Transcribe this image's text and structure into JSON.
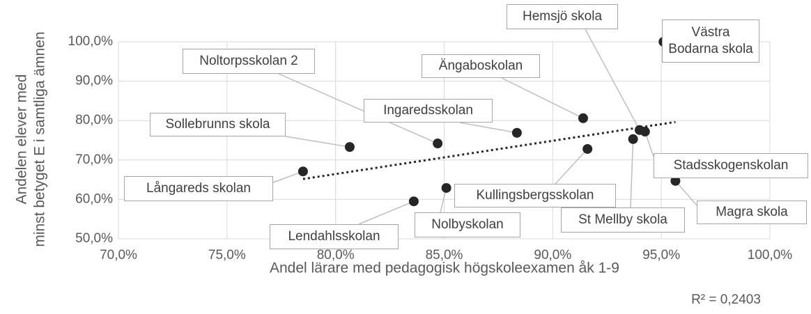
{
  "chart_data": {
    "type": "scatter",
    "xlabel": "Andel lärare med pedagogisk högskoleexamen åk 1-9",
    "ylabel": [
      "Andelen elever med",
      "minst betyget E i samtliga ämnen"
    ],
    "annotation": "R² = 0,2403",
    "color": "#262626",
    "trendline": true,
    "grid": true,
    "xlim": [
      70,
      100
    ],
    "ylim": [
      50,
      100
    ],
    "xticks": [
      {
        "value": 70,
        "label": "70,0%"
      },
      {
        "value": 75,
        "label": "75,0%"
      },
      {
        "value": 80,
        "label": "80,0%"
      },
      {
        "value": 85,
        "label": "85,0%"
      },
      {
        "value": 90,
        "label": "90,0%"
      },
      {
        "value": 95,
        "label": "95,0%"
      },
      {
        "value": 100,
        "label": "100,0%"
      }
    ],
    "yticks": [
      {
        "value": 50,
        "label": "50,0%"
      },
      {
        "value": 60,
        "label": "60,0%"
      },
      {
        "value": 70,
        "label": "70,0%"
      },
      {
        "value": 80,
        "label": "80,0%"
      },
      {
        "value": 90,
        "label": "90,0%"
      },
      {
        "value": 100,
        "label": "100,0%"
      }
    ],
    "points": [
      {
        "name": "Hemsjö skola",
        "x": 94.0,
        "y": 77.6
      },
      {
        "name": "Västra Bodarna skola",
        "x": 95.1,
        "y": 100
      },
      {
        "name": "Noltorpsskolan 2",
        "x": 84.7,
        "y": 74.2
      },
      {
        "name": "Ängaboskolan",
        "x": 91.4,
        "y": 80.6
      },
      {
        "name": "Ingaredsskolan",
        "x": 88.35,
        "y": 76.9
      },
      {
        "name": "Sollebrunns skola",
        "x": 80.65,
        "y": 73.3
      },
      {
        "name": "Långareds skolan",
        "x": 78.5,
        "y": 67.1
      },
      {
        "name": "Stadsskogenskolan",
        "x": 94.25,
        "y": 77.2
      },
      {
        "name": "Kullingsbergsskolan",
        "x": 91.6,
        "y": 72.8
      },
      {
        "name": "Magra skola",
        "x": 95.65,
        "y": 64.7
      },
      {
        "name": "Lendahlsskolan",
        "x": 83.6,
        "y": 59.5
      },
      {
        "name": "Nolbyskolan",
        "x": 85.1,
        "y": 62.9
      },
      {
        "name": "St Mellby skola",
        "x": 93.7,
        "y": 75.3
      }
    ]
  }
}
